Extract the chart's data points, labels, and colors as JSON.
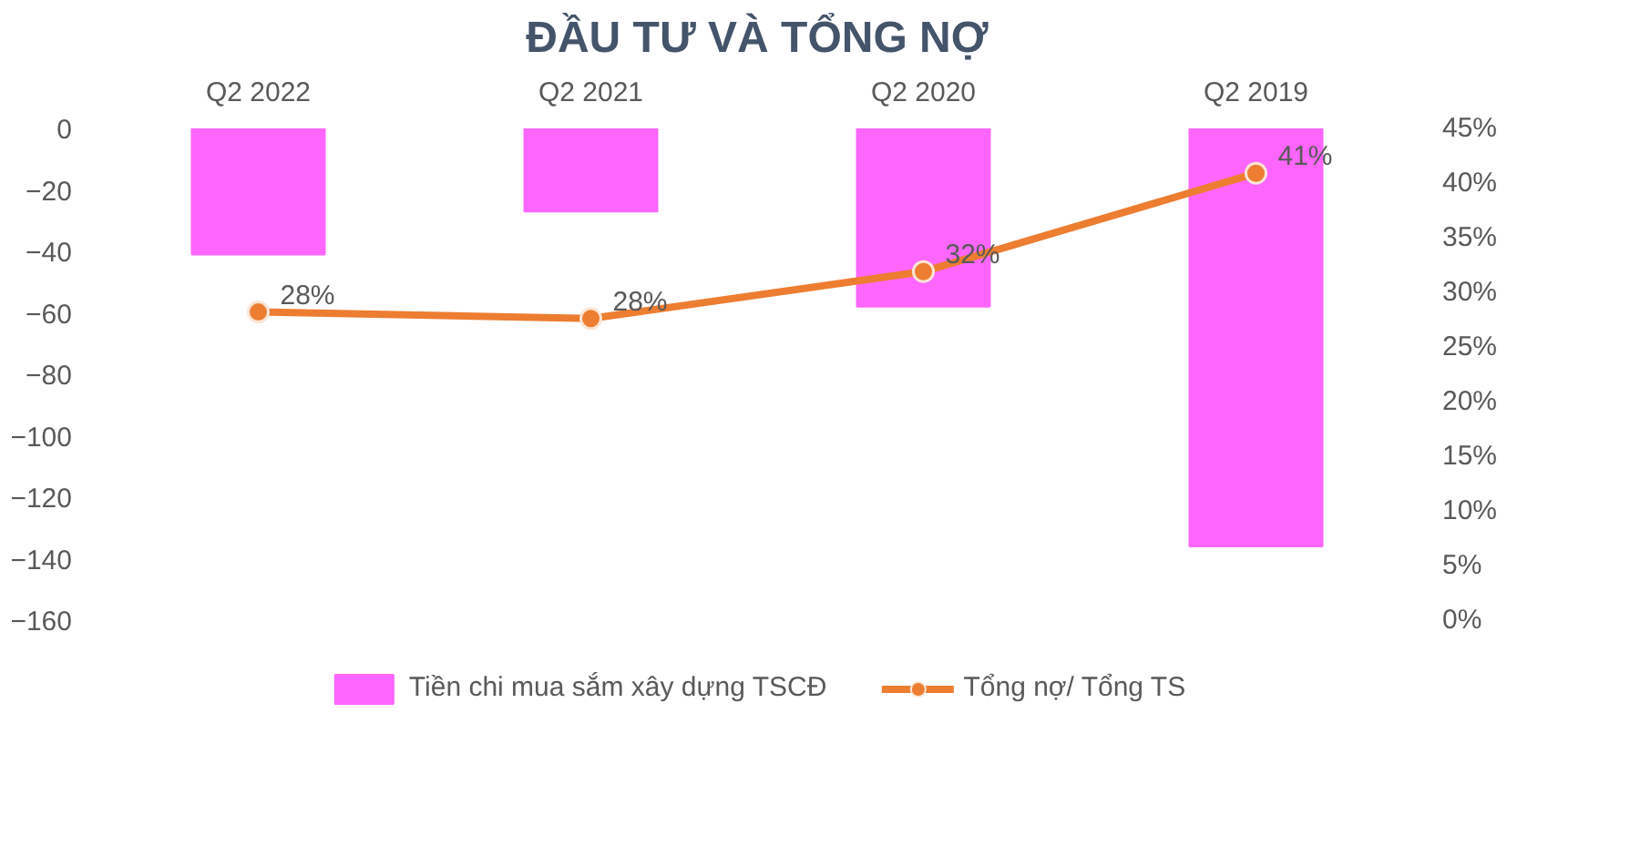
{
  "chart_data": {
    "type": "bar",
    "title": "ĐẦU TƯ VÀ TỔNG NỢ",
    "categories": [
      "Q2 2022",
      "Q2 2021",
      "Q2 2020",
      "Q2 2019"
    ],
    "ylim": [
      -160,
      0
    ],
    "yticks": [
      0,
      -20,
      -40,
      -60,
      -80,
      -100,
      -120,
      -140,
      -160
    ],
    "y2lim": [
      0,
      45
    ],
    "y2ticks": [
      {
        "value": 0,
        "label": "0%"
      },
      {
        "value": 5,
        "label": "5%"
      },
      {
        "value": 10,
        "label": "10%"
      },
      {
        "value": 15,
        "label": "15%"
      },
      {
        "value": 20,
        "label": "20%"
      },
      {
        "value": 25,
        "label": "25%"
      },
      {
        "value": 30,
        "label": "30%"
      },
      {
        "value": 35,
        "label": "35%"
      },
      {
        "value": 40,
        "label": "40%"
      },
      {
        "value": 45,
        "label": "45%"
      }
    ],
    "grid": false,
    "legend": "bottom",
    "marker": "circle",
    "series": [
      {
        "name": "Tiền chi mua sắm xây dựng TSCĐ",
        "color": "#ff66ff",
        "values": [
          -41,
          -27,
          -58,
          -136
        ]
      },
      {
        "name": "Tổng nợ/ Tổng TS",
        "type": "line",
        "axis": "y2",
        "color": "#ed7d31",
        "values": [
          28.2,
          27.6,
          31.9,
          40.9
        ],
        "value_labels": [
          "28%",
          "28%",
          "32%",
          "41%"
        ]
      }
    ]
  }
}
